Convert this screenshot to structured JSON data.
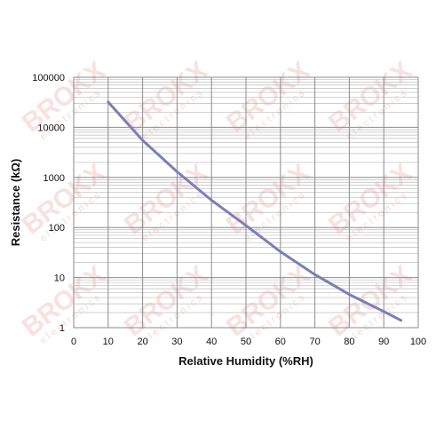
{
  "chart_data": {
    "type": "line",
    "title": "",
    "xlabel": "Relative Humidity (%RH)",
    "ylabel": "Resistance (kΩ)",
    "y_scale": "log",
    "xlim": [
      0,
      100
    ],
    "ylim": [
      1,
      100000
    ],
    "x_ticks": [
      "0",
      "10",
      "20",
      "30",
      "40",
      "50",
      "60",
      "70",
      "80",
      "90",
      "100"
    ],
    "y_ticks": [
      "1",
      "10",
      "100",
      "1000",
      "10000",
      "100000"
    ],
    "grid": true,
    "legend": "none",
    "series": [
      {
        "color": "#7b7fb5",
        "x": [
          10,
          20,
          30,
          40,
          50,
          60,
          70,
          80,
          90,
          95
        ],
        "y": [
          32000,
          5500,
          1300,
          350,
          110,
          33,
          11.5,
          4.6,
          2.1,
          1.4
        ]
      }
    ]
  },
  "watermark": {
    "brand": "BROKX",
    "sub": "electronics",
    "color": "#e8a9a9"
  }
}
